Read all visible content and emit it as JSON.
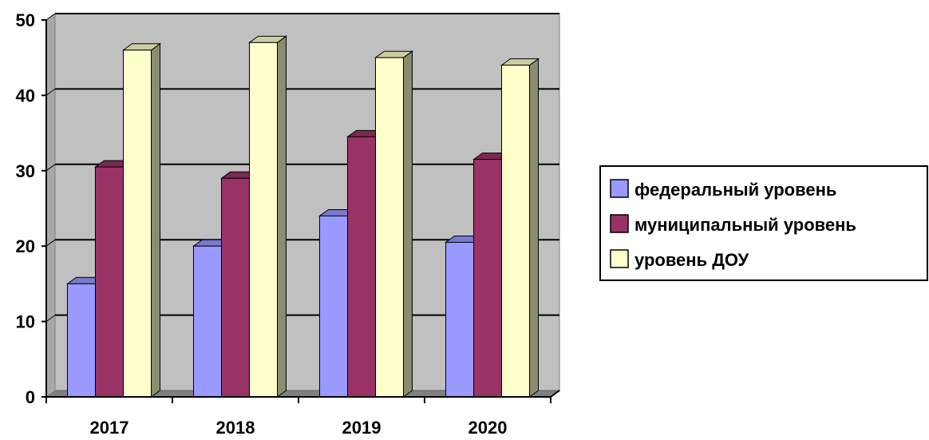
{
  "chart_data": {
    "type": "bar",
    "categories": [
      "2017",
      "2018",
      "2019",
      "2020"
    ],
    "series": [
      {
        "name": "федеральный уровень",
        "values": [
          15,
          20,
          24,
          20.5
        ],
        "color": "#9999ff"
      },
      {
        "name": "муниципальный уровень",
        "values": [
          30.5,
          29,
          34.5,
          31.5
        ],
        "color": "#993366"
      },
      {
        "name": "уровень ДОУ",
        "values": [
          46,
          47,
          45,
          44
        ],
        "color": "#ffffcc"
      }
    ],
    "title": "",
    "xlabel": "",
    "ylabel": "",
    "ylim": [
      0,
      50
    ],
    "yticks": [
      "0",
      "10",
      "20",
      "30",
      "40",
      "50"
    ],
    "grid": true,
    "style": "3d-column",
    "plot_background": "#c0c0c0",
    "legend_position": "right"
  }
}
